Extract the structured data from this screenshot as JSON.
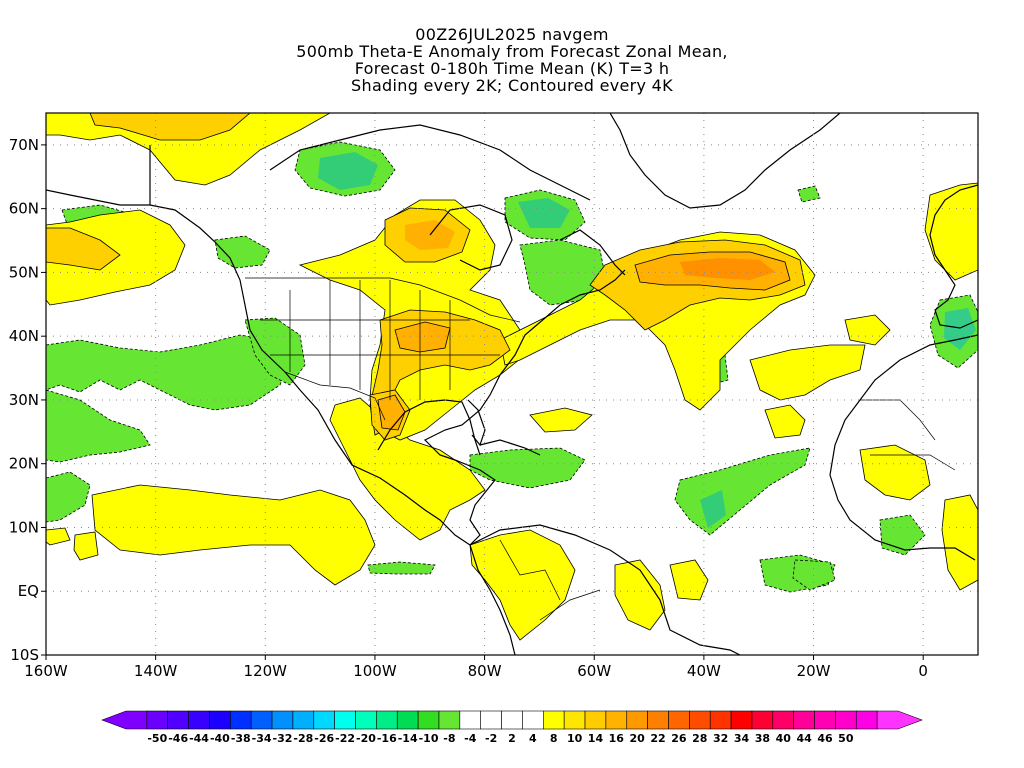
{
  "title": {
    "lines": [
      "00Z26JUL2025 navgem",
      "500mb Theta-E Anomaly from Forecast Zonal Mean,",
      "Forecast 0-180h Time Mean (K) T=3 h",
      "Shading every 2K; Contoured every 4K"
    ]
  },
  "map": {
    "lon_range": [
      -160,
      10
    ],
    "lat_range": [
      -10,
      75
    ],
    "lon_ticks": [
      {
        "value": -160,
        "label": "160W"
      },
      {
        "value": -140,
        "label": "140W"
      },
      {
        "value": -120,
        "label": "120W"
      },
      {
        "value": -100,
        "label": "100W"
      },
      {
        "value": -80,
        "label": "80W"
      },
      {
        "value": -60,
        "label": "60W"
      },
      {
        "value": -40,
        "label": "40W"
      },
      {
        "value": -20,
        "label": "20W"
      },
      {
        "value": 0,
        "label": "0"
      }
    ],
    "lat_ticks": [
      {
        "value": 70,
        "label": "70N"
      },
      {
        "value": 60,
        "label": "60N"
      },
      {
        "value": 50,
        "label": "50N"
      },
      {
        "value": 40,
        "label": "40N"
      },
      {
        "value": 30,
        "label": "30N"
      },
      {
        "value": 20,
        "label": "20N"
      },
      {
        "value": 10,
        "label": "10N"
      },
      {
        "value": 0,
        "label": "EQ"
      },
      {
        "value": -10,
        "label": "10S"
      }
    ],
    "gridlines": "dotted",
    "colors": {
      "green_light": "#66e633",
      "green_mid": "#33cc66",
      "green_dark": "#22bb88",
      "yellow": "#ffff00",
      "gold": "#ffd000",
      "orange_light": "#ffb000",
      "orange": "#ff9000",
      "coast": "#000000"
    }
  },
  "colorbar": {
    "colors": [
      "#8000ff",
      "#6a00ff",
      "#5000ff",
      "#3800ff",
      "#1c00ff",
      "#0030ff",
      "#0060ff",
      "#0090ff",
      "#00b0ff",
      "#00d8ff",
      "#00ffee",
      "#00ffbb",
      "#00ee88",
      "#00dd55",
      "#33dd22",
      "#66e633",
      "#ffffff",
      "#ffffff",
      "#ffffff",
      "#ffffff",
      "#ffff00",
      "#ffe600",
      "#ffcc00",
      "#ffb300",
      "#ff9900",
      "#ff8000",
      "#ff6600",
      "#ff4d00",
      "#ff3300",
      "#ff0000",
      "#ff0033",
      "#ff0066",
      "#ff0099",
      "#ff00b3",
      "#ff00cc",
      "#ff00e6",
      "#ff33ff"
    ],
    "labels": [
      "-50",
      "-46",
      "-44",
      "-40",
      "-38",
      "-34",
      "-32",
      "-28",
      "-26",
      "-22",
      "-20",
      "-16",
      "-14",
      "-10",
      "-8",
      "-4",
      "-2",
      "2",
      "4",
      "8",
      "10",
      "14",
      "16",
      "20",
      "22",
      "26",
      "28",
      "32",
      "34",
      "38",
      "40",
      "44",
      "46",
      "50"
    ]
  }
}
